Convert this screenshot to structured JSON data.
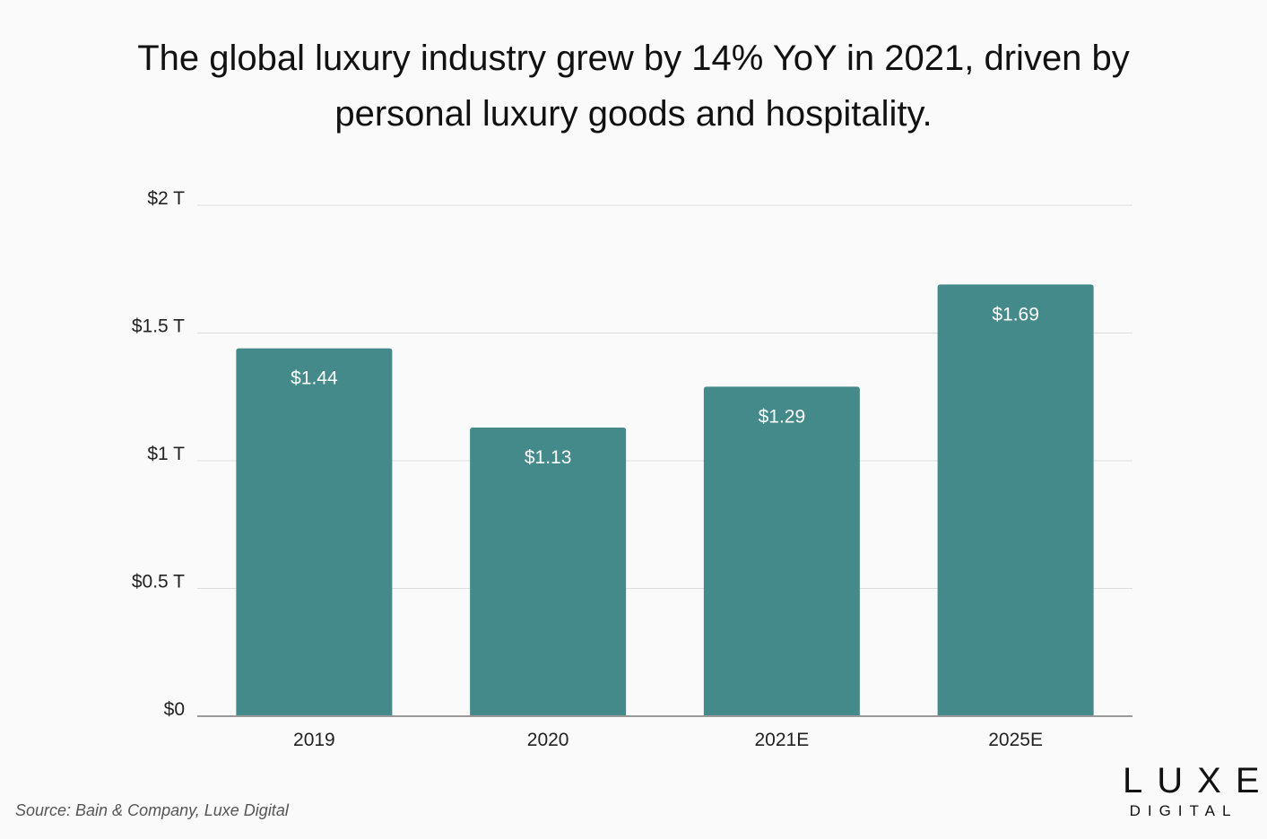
{
  "title": "The global luxury industry grew by 14% YoY in 2021, driven by personal luxury goods and hospitality.",
  "source": "Source: Bain & Company, Luxe Digital",
  "logo": {
    "main": "LUXE",
    "sub": "DIGITAL"
  },
  "colors": {
    "bar": "#458a8a",
    "bar_label": "#ffffff",
    "grid": "#dddddd",
    "axis": "#999999",
    "background": "#fafafa"
  },
  "chart_data": {
    "type": "bar",
    "title": "The global luxury industry grew by 14% YoY in 2021, driven by personal luxury goods and hospitality.",
    "xlabel": "",
    "ylabel": "",
    "categories": [
      "2019",
      "2020",
      "2021E",
      "2025E"
    ],
    "values": [
      1.44,
      1.13,
      1.29,
      1.69
    ],
    "data_labels": [
      "$1.44",
      "$1.13",
      "$1.29",
      "$1.69"
    ],
    "ylim": [
      0,
      2
    ],
    "yticks": [
      {
        "value": 0,
        "label": "$0"
      },
      {
        "value": 0.5,
        "label": "$0.5 T"
      },
      {
        "value": 1,
        "label": "$1 T"
      },
      {
        "value": 1.5,
        "label": "$1.5 T"
      },
      {
        "value": 2,
        "label": "$2 T"
      }
    ],
    "grid": true,
    "legend": "none"
  }
}
